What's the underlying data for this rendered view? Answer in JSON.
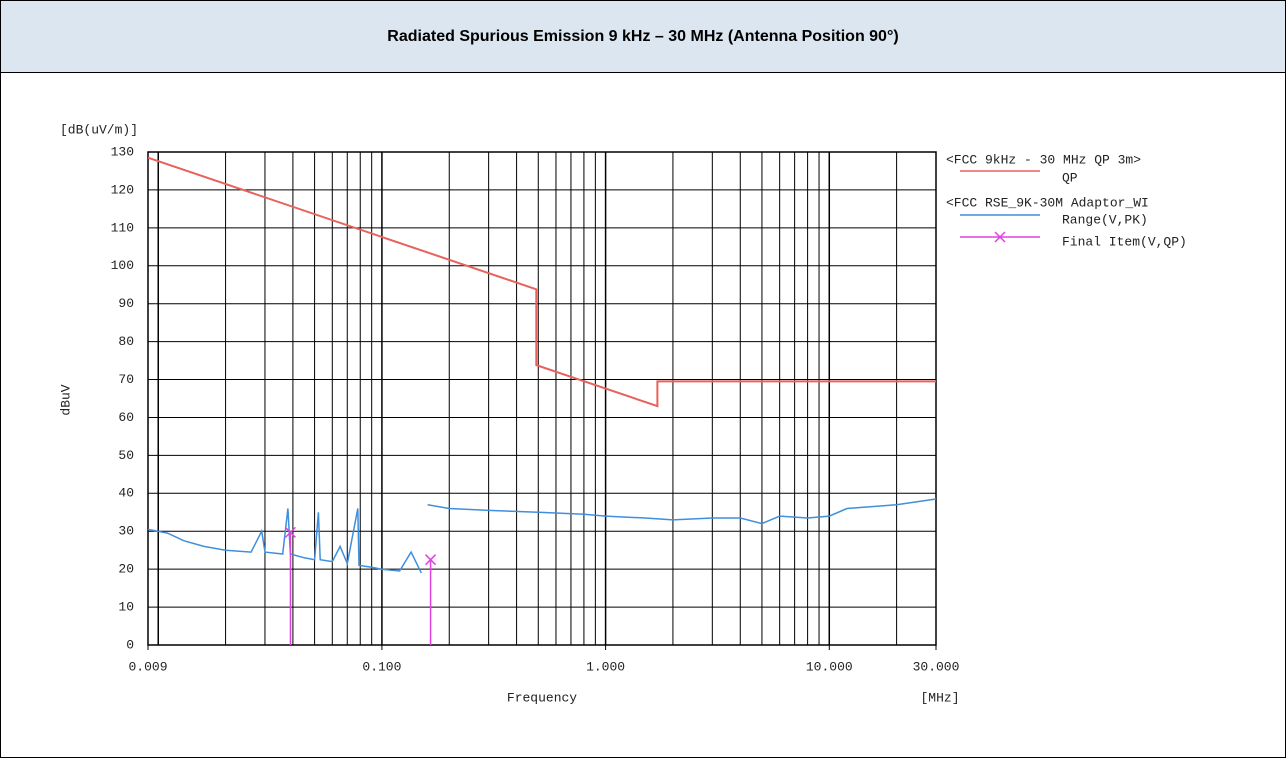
{
  "chart_data": {
    "type": "line",
    "title": "Radiated Spurious Emission 9 kHz – 30 MHz (Antenna Position 90°)",
    "y_unit": "[dB(uV/m)]",
    "y_label": "dBuV",
    "x_label": "Frequency",
    "x_unit": "[MHz]",
    "legend_groups": [
      "<FCC 9kHz - 30 MHz QP 3m>",
      "<FCC RSE_9K-30M Adaptor_WI"
    ],
    "log_x": true,
    "grid": true,
    "xlim": [
      0.009,
      30
    ],
    "xticks": [
      {
        "value": 0.009,
        "label": "0.009"
      },
      {
        "value": 0.1,
        "label": "0.100"
      },
      {
        "value": 1,
        "label": "1.000"
      },
      {
        "value": 10,
        "label": "10.000"
      },
      {
        "value": 30,
        "label": "30.000"
      }
    ],
    "ylim": [
      0,
      130
    ],
    "yticks": [
      0,
      10,
      20,
      30,
      40,
      50,
      60,
      70,
      80,
      90,
      100,
      110,
      120,
      130
    ],
    "series": [
      {
        "name": "QP",
        "color": "#e8615c",
        "x": [
          0.009,
          0.49,
          0.49,
          1.705,
          1.705,
          30
        ],
        "values": [
          128.5,
          93.8,
          73.8,
          63,
          69.5,
          69.5
        ]
      },
      {
        "name": "Range(V,PK)",
        "color": "#3f8fdc",
        "x": [
          0.009,
          0.011,
          0.013,
          0.016,
          0.02,
          0.026,
          0.029,
          0.03,
          0.036,
          0.038,
          0.039,
          0.045,
          0.05,
          0.052,
          0.053,
          0.06,
          0.065,
          0.07,
          0.078,
          0.079,
          0.09,
          0.1,
          0.12,
          0.135,
          0.15,
          0.155,
          0.16,
          0.2,
          0.3,
          0.5,
          0.8,
          1,
          1.5,
          2,
          3,
          4,
          5,
          6,
          8,
          10,
          12,
          20,
          30
        ],
        "values": [
          30.5,
          29.5,
          27.5,
          26,
          25,
          24.5,
          30,
          24.5,
          24,
          36,
          24,
          23,
          22.5,
          35,
          22.5,
          22,
          26,
          21.5,
          36,
          21,
          20.5,
          20,
          19.5,
          24.5,
          19,
          null,
          37,
          36,
          35.5,
          35,
          34.5,
          34,
          33.5,
          33,
          33.5,
          33.5,
          32,
          34,
          33.5,
          34,
          36,
          37,
          38.5
        ]
      },
      {
        "name": "Final Item(V,QP)",
        "color": "#e040e0",
        "x": [
          0.039,
          0.165
        ],
        "values": [
          29.7,
          22.5
        ]
      }
    ]
  }
}
